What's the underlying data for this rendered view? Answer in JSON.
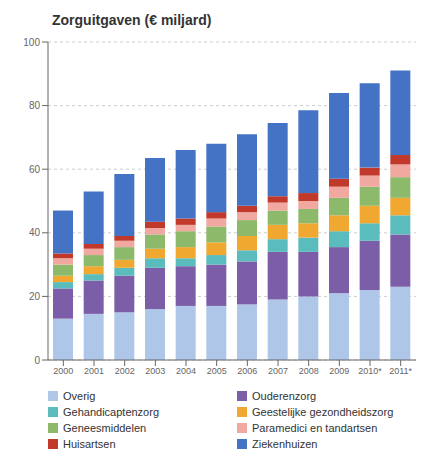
{
  "chart_data": {
    "type": "bar",
    "title": "Zorguitgaven (€ miljard)",
    "stacked": true,
    "grid": true,
    "legend": "bottom",
    "categories": [
      "2000",
      "2001",
      "2002",
      "2003",
      "2004",
      "2005",
      "2006",
      "2007",
      "2008",
      "2009",
      "2010*",
      "2011*"
    ],
    "ylim": [
      0,
      100
    ],
    "yticks": [
      0,
      20,
      40,
      60,
      80,
      100
    ],
    "series": [
      {
        "name": "Overig",
        "color": "#aec6e8",
        "values": [
          13.0,
          14.5,
          15.0,
          16.0,
          17.0,
          17.0,
          17.5,
          19.0,
          20.0,
          21.0,
          22.0,
          23.0
        ]
      },
      {
        "name": "Ouderenzorg",
        "color": "#7b5ea7",
        "values": [
          9.5,
          10.5,
          11.5,
          13.0,
          12.5,
          13.0,
          13.5,
          15.0,
          14.0,
          14.5,
          15.5,
          16.5
        ]
      },
      {
        "name": "Gehandicaptenzorg",
        "color": "#5bbcbd",
        "values": [
          2.0,
          2.0,
          2.5,
          3.0,
          2.5,
          3.0,
          3.5,
          4.0,
          4.5,
          5.0,
          5.5,
          6.0
        ]
      },
      {
        "name": "Geestelijke gezondheidszorg",
        "color": "#f0a830",
        "values": [
          2.0,
          2.5,
          2.5,
          3.0,
          3.5,
          4.0,
          4.5,
          4.5,
          4.5,
          5.0,
          5.5,
          5.5
        ]
      },
      {
        "name": "Geneesmiddelen",
        "color": "#8db96b",
        "values": [
          3.5,
          3.5,
          4.0,
          4.5,
          5.0,
          5.0,
          5.0,
          4.5,
          4.5,
          5.5,
          6.0,
          6.5
        ]
      },
      {
        "name": "Paramedici en tandartsen",
        "color": "#f0a8a0",
        "values": [
          2.0,
          2.0,
          2.0,
          2.0,
          2.0,
          2.5,
          2.5,
          2.5,
          2.5,
          3.5,
          3.5,
          4.0
        ]
      },
      {
        "name": "Huisartsen",
        "color": "#c0392b",
        "values": [
          1.5,
          1.5,
          1.5,
          2.0,
          2.0,
          2.0,
          2.0,
          2.0,
          2.5,
          2.5,
          2.5,
          3.0
        ]
      },
      {
        "name": "Ziekenhuizen",
        "color": "#4472c4",
        "values": [
          13.5,
          16.5,
          19.5,
          20.0,
          21.5,
          21.5,
          22.5,
          23.0,
          26.0,
          27.0,
          26.5,
          26.5
        ]
      }
    ]
  }
}
